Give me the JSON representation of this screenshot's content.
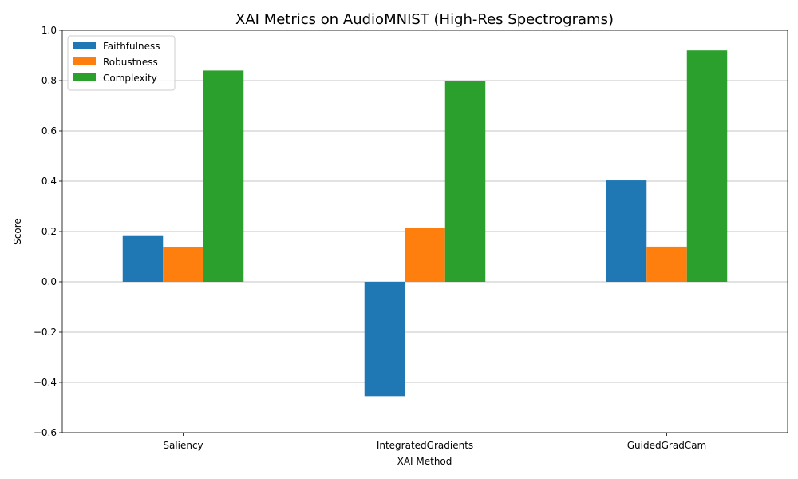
{
  "chart_data": {
    "type": "bar",
    "title": "XAI Metrics on AudioMNIST (High-Res Spectrograms)",
    "xlabel": "XAI Method",
    "ylabel": "Score",
    "categories": [
      "Saliency",
      "IntegratedGradients",
      "GuidedGradCam"
    ],
    "series": [
      {
        "name": "Faithfulness",
        "color": "#1f77b4",
        "values": [
          0.185,
          -0.455,
          0.403
        ]
      },
      {
        "name": "Robustness",
        "color": "#ff7f0e",
        "values": [
          0.137,
          0.213,
          0.14
        ]
      },
      {
        "name": "Complexity",
        "color": "#2ca02c",
        "values": [
          0.84,
          0.798,
          0.92
        ]
      }
    ],
    "ylim": [
      -0.6,
      1.0
    ],
    "yticks": [
      -0.6,
      -0.4,
      -0.2,
      0.0,
      0.2,
      0.4,
      0.6,
      0.8,
      1.0
    ],
    "ytick_labels": [
      "−0.6",
      "−0.4",
      "−0.2",
      "0.0",
      "0.2",
      "0.4",
      "0.6",
      "0.8",
      "1.0"
    ],
    "grid": "y",
    "legend": "top-left"
  }
}
